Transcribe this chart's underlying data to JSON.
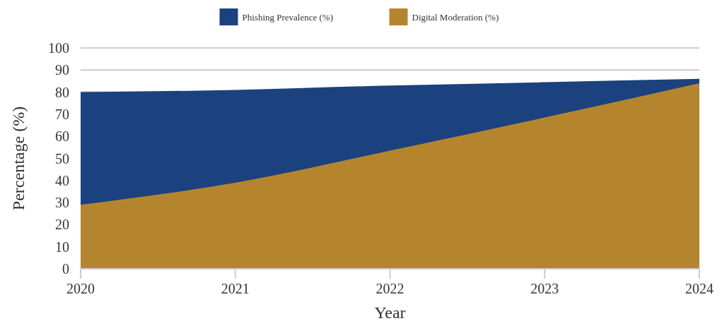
{
  "chart_data": {
    "type": "area",
    "xlabel": "Year",
    "ylabel": "Percentage (%)",
    "x": [
      2020,
      2021,
      2022,
      2023,
      2024
    ],
    "xlim": [
      2020,
      2024
    ],
    "xticks": [
      2020,
      2021,
      2022,
      2023,
      2024
    ],
    "ylim": [
      0,
      100
    ],
    "yticks": [
      0,
      10,
      20,
      30,
      40,
      50,
      60,
      70,
      80,
      90,
      100
    ],
    "grid": "y",
    "legend": "top",
    "series": [
      {
        "name": "Phishing Prevalence (%)",
        "color": "#1b427e",
        "values": [
          80,
          81,
          83,
          84.5,
          86
        ]
      },
      {
        "name": "Digital Moderation (%)",
        "color": "#b5852e",
        "values": [
          29,
          39,
          53.5,
          68.5,
          84
        ]
      }
    ]
  }
}
